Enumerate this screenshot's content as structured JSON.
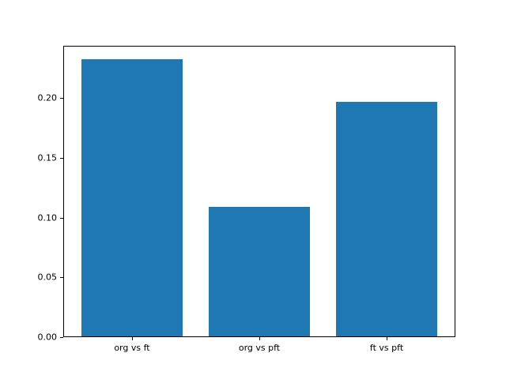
{
  "chart_data": {
    "type": "bar",
    "title": "",
    "xlabel": "",
    "ylabel": "",
    "categories": [
      "org vs ft",
      "org vs pft",
      "ft vs pft"
    ],
    "values": [
      0.232,
      0.108,
      0.196
    ],
    "ylim": [
      0,
      0.2436
    ],
    "yticks": [
      0.0,
      0.05,
      0.1,
      0.15,
      0.2
    ],
    "ytick_labels": [
      "0.00",
      "0.05",
      "0.10",
      "0.15",
      "0.20"
    ],
    "bar_color": "#1f77b4",
    "background_color": "#ffffff",
    "spine_color": "#000000",
    "grid": false,
    "legend": false,
    "bar_width_fraction": 0.8
  }
}
